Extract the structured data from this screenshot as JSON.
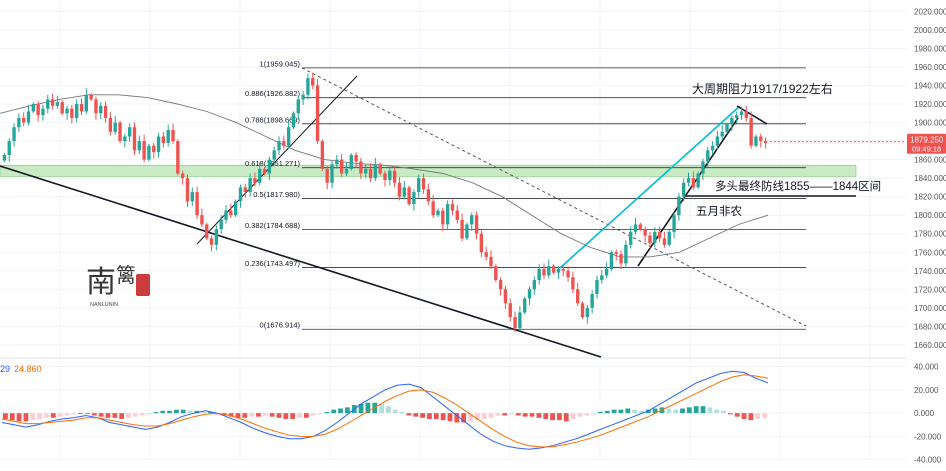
{
  "chart_data": {
    "type": "candlestick",
    "price_axis": {
      "range": [
        1648,
        2028
      ],
      "ticks": [
        "2020.000",
        "2000.000",
        "1980.000",
        "1960.000",
        "1940.000",
        "1920.000",
        "1900.000",
        "1880.000",
        "1860.000",
        "1840.000",
        "1820.000",
        "1800.000",
        "1780.000",
        "1760.000",
        "1740.000",
        "1720.000",
        "1700.000",
        "1680.000",
        "1660.000"
      ]
    },
    "current_price": {
      "value": "1879.250",
      "time": "09:49:18",
      "color": "#ef5350"
    },
    "fib_levels": [
      {
        "ratio": 1,
        "price": 1959.045,
        "label": "1(1959.045)"
      },
      {
        "ratio": 0.886,
        "price": 1926.882,
        "label": "0.886(1926.882)"
      },
      {
        "ratio": 0.786,
        "price": 1898.669,
        "label": "0.786(1898.669)"
      },
      {
        "ratio": 0.618,
        "price": 1851.271,
        "label": "0.618(1851.271)"
      },
      {
        "ratio": 0.5,
        "price": 1817.98,
        "label": "0.5(1817.980)"
      },
      {
        "ratio": 0.382,
        "price": 1784.688,
        "label": "0.382(1784.688)"
      },
      {
        "ratio": 0.236,
        "price": 1743.497,
        "label": "0.236(1743.497)"
      },
      {
        "ratio": 0,
        "price": 1676.914,
        "label": "0(1676.914)"
      }
    ],
    "support_zone": {
      "low": 1844,
      "high": 1855,
      "color": "#b7e4b0"
    },
    "candles_close": [
      1865,
      1880,
      1895,
      1905,
      1900,
      1912,
      1920,
      1908,
      1915,
      1925,
      1918,
      1922,
      1910,
      1915,
      1905,
      1920,
      1912,
      1930,
      1925,
      1910,
      1918,
      1905,
      1890,
      1900,
      1880,
      1885,
      1895,
      1870,
      1880,
      1860,
      1875,
      1868,
      1885,
      1878,
      1892,
      1880,
      1845,
      1840,
      1815,
      1825,
      1800,
      1790,
      1775,
      1768,
      1785,
      1795,
      1805,
      1800,
      1815,
      1830,
      1825,
      1840,
      1835,
      1850,
      1845,
      1860,
      1870,
      1880,
      1875,
      1895,
      1910,
      1925,
      1930,
      1948,
      1940,
      1880,
      1850,
      1835,
      1855,
      1860,
      1845,
      1850,
      1865,
      1858,
      1845,
      1850,
      1840,
      1855,
      1845,
      1838,
      1848,
      1835,
      1820,
      1830,
      1812,
      1825,
      1840,
      1828,
      1815,
      1800,
      1805,
      1790,
      1812,
      1805,
      1795,
      1775,
      1790,
      1800,
      1780,
      1760,
      1755,
      1745,
      1730,
      1720,
      1705,
      1690,
      1678,
      1695,
      1710,
      1720,
      1730,
      1742,
      1735,
      1745,
      1738,
      1742,
      1740,
      1733,
      1720,
      1705,
      1690,
      1700,
      1715,
      1730,
      1735,
      1742,
      1760,
      1758,
      1748,
      1768,
      1782,
      1790,
      1785,
      1778,
      1770,
      1782,
      1775,
      1768,
      1782,
      1800,
      1820,
      1835,
      1840,
      1830,
      1845,
      1858,
      1870,
      1875,
      1885,
      1890,
      1898,
      1905,
      1908,
      1912,
      1905,
      1875,
      1885,
      1880,
      1878
    ],
    "ma_series": [
      1910,
      1918,
      1925,
      1930,
      1930,
      1927,
      1920,
      1912,
      1900,
      1885,
      1870,
      1860,
      1856,
      1854,
      1850,
      1845,
      1835,
      1820,
      1800,
      1780,
      1765,
      1755,
      1755,
      1760,
      1775,
      1790,
      1800
    ],
    "trend_lines": "decorative",
    "annotations": [
      "大周期阻力1917/1922左右",
      "多头最终防线1855——1844区间",
      "五月非农"
    ],
    "macd": {
      "values_shown": [
        "29",
        "24.860"
      ],
      "value_colors": [
        "#2962ff",
        "#ff6d00"
      ],
      "axis_ticks": [
        "40.000",
        "20.000",
        "0.000",
        "-20.000",
        "-40.000"
      ],
      "range": [
        -42,
        44
      ],
      "hist": [
        -5,
        -6,
        -7,
        -7,
        -6,
        -5,
        -4,
        -4,
        -3,
        -2,
        -1,
        0,
        0,
        -2,
        -3,
        -4,
        -4,
        -5,
        -4,
        -3,
        -2,
        -1,
        1,
        2,
        2,
        3,
        3,
        2,
        2,
        1,
        1,
        -1,
        -2,
        -3,
        -4,
        -4,
        -3,
        -3,
        -2,
        -3,
        -4,
        -5,
        -5,
        -4,
        -4,
        -2,
        -1,
        1,
        3,
        4,
        5,
        7,
        8,
        9,
        9,
        8,
        6,
        3,
        1,
        -2,
        -3,
        -4,
        -5,
        -5,
        -6,
        -7,
        -8,
        -8,
        -7,
        -6,
        -5,
        -4,
        -2,
        -2,
        -1,
        -2,
        -3,
        -3,
        -4,
        -5,
        -6,
        -6,
        -7,
        -5,
        -3,
        -2,
        -1,
        1,
        2,
        3,
        3,
        4,
        3,
        2,
        3,
        4,
        5,
        4,
        3,
        4,
        5,
        6,
        6,
        5,
        3,
        2,
        -1,
        -3,
        -5,
        -6,
        -5,
        -4
      ],
      "macd_line": [
        -8,
        -10,
        -12,
        -10,
        -7,
        -5,
        -4,
        -2,
        -4,
        -8,
        -10,
        -12,
        -14,
        -12,
        -8,
        -3,
        0,
        2,
        0,
        -4,
        -8,
        -13,
        -17,
        -20,
        -22,
        -22,
        -20,
        -15,
        -8,
        0,
        8,
        14,
        20,
        24,
        25,
        22,
        14,
        6,
        -2,
        -10,
        -18,
        -24,
        -28,
        -30,
        -31,
        -30,
        -28,
        -25,
        -22,
        -18,
        -14,
        -10,
        -6,
        -2,
        2,
        8,
        14,
        20,
        26,
        30,
        34,
        36,
        35,
        30,
        26
      ],
      "signal_line": [
        -5,
        -7,
        -9,
        -9,
        -8,
        -7,
        -6,
        -4,
        -4,
        -6,
        -8,
        -10,
        -11,
        -11,
        -9,
        -6,
        -3,
        -1,
        0,
        -2,
        -5,
        -9,
        -13,
        -16,
        -19,
        -20,
        -20,
        -18,
        -14,
        -8,
        -2,
        4,
        10,
        15,
        19,
        20,
        18,
        13,
        7,
        0,
        -7,
        -14,
        -20,
        -25,
        -28,
        -29,
        -29,
        -27,
        -25,
        -22,
        -19,
        -15,
        -11,
        -7,
        -3,
        2,
        7,
        12,
        17,
        22,
        27,
        31,
        33,
        32,
        30
      ]
    }
  },
  "watermark": {
    "text": "NANLUNIN"
  }
}
